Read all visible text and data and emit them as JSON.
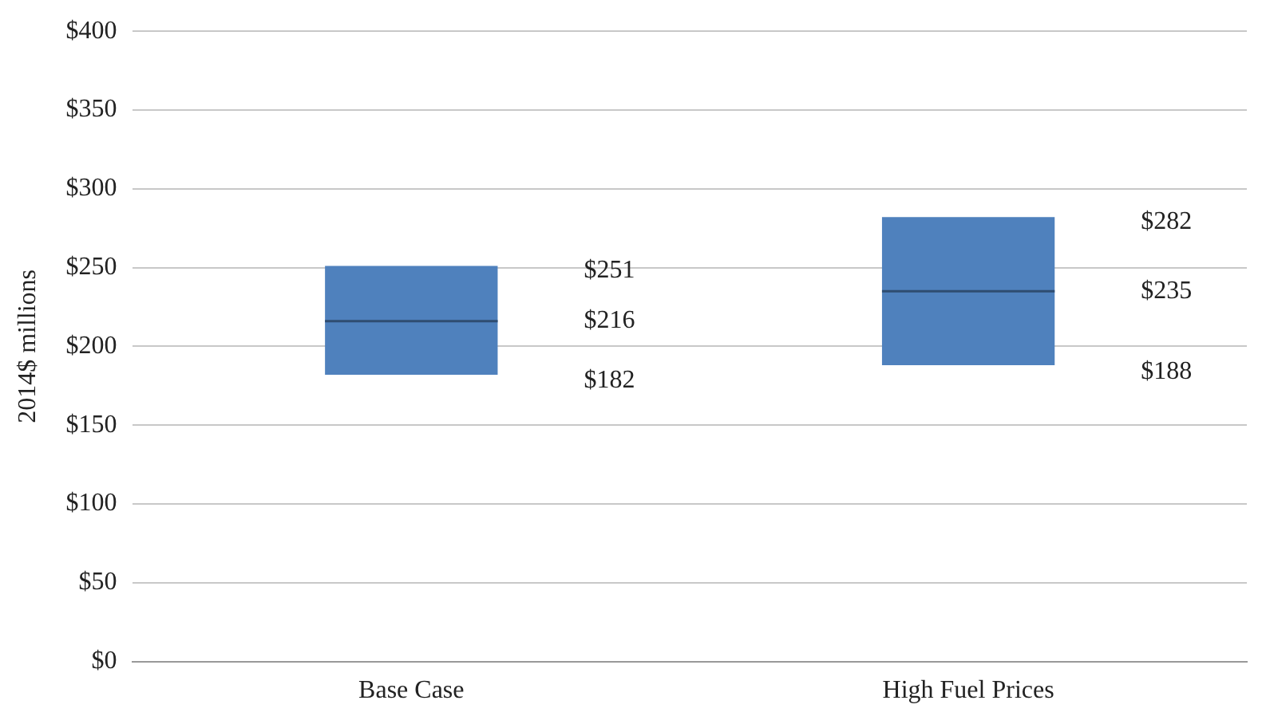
{
  "chart_data": {
    "type": "box",
    "ylabel": "2014$ millions",
    "categories": [
      "Base Case",
      "High Fuel Prices"
    ],
    "color": "#4f81bd",
    "boxes": [
      {
        "low": 182,
        "q1": 182,
        "median": 216,
        "q3": 251,
        "high": 251
      },
      {
        "low": 188,
        "q1": 188,
        "median": 235,
        "q3": 282,
        "high": 282
      }
    ],
    "value_labels": [
      [
        "$251",
        "$216",
        "$182"
      ],
      [
        "$282",
        "$235",
        "$188"
      ]
    ],
    "ylim": [
      0,
      400
    ],
    "yticks": [
      {
        "value": 0,
        "label": "$0"
      },
      {
        "value": 50,
        "label": "$50"
      },
      {
        "value": 100,
        "label": "$100"
      },
      {
        "value": 150,
        "label": "$150"
      },
      {
        "value": 200,
        "label": "$200"
      },
      {
        "value": 250,
        "label": "$250"
      },
      {
        "value": 300,
        "label": "$300"
      },
      {
        "value": 350,
        "label": "$350"
      },
      {
        "value": 400,
        "label": "$400"
      }
    ],
    "grid": "y",
    "legend": false
  }
}
